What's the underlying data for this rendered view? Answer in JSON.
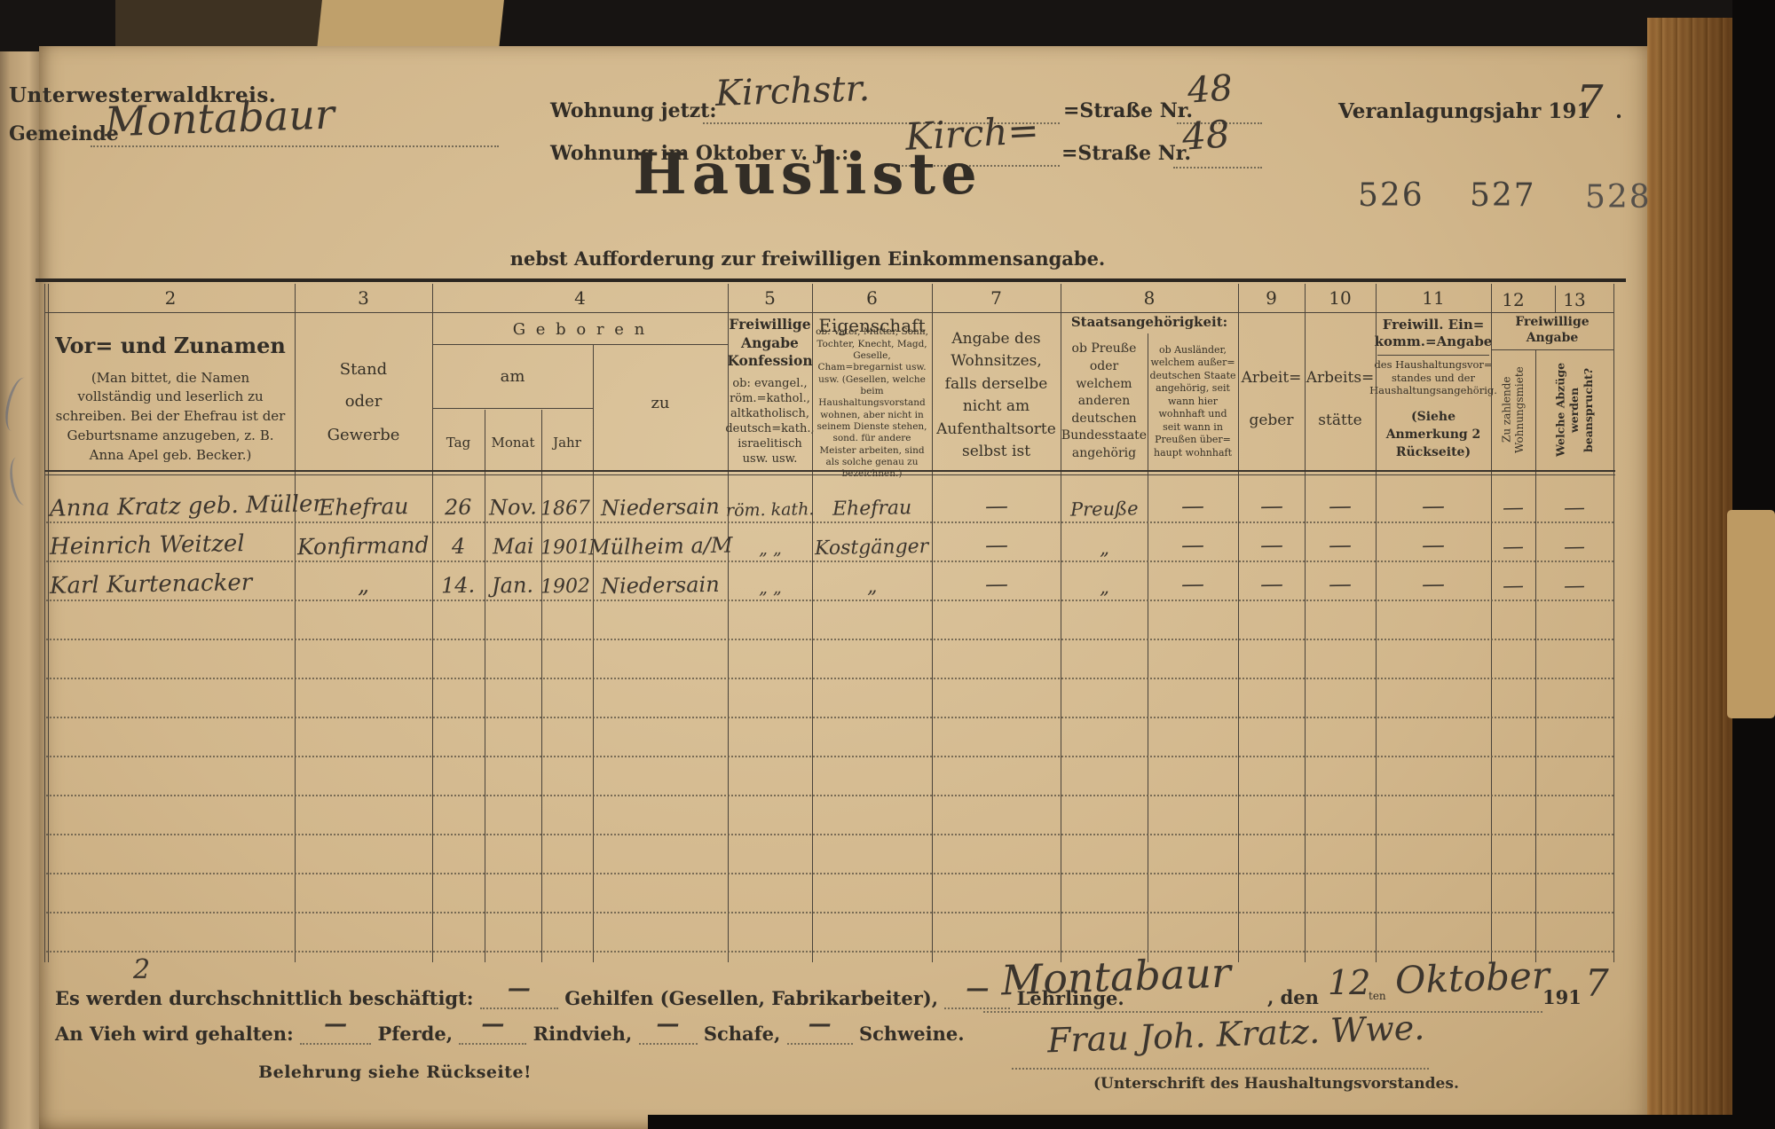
{
  "header": {
    "kreis": "Unterwesterwaldkreis.",
    "gemeinde_label": "Gemeinde",
    "gemeinde_value": "Montabaur",
    "wohnung_jetzt_label": "Wohnung jetzt:",
    "wohnung_jetzt_value": "Kirchstr.",
    "strasse_label": "=Straße Nr.",
    "strasse_nr_jetzt": "48",
    "veranlagung_label": "Veranlagungsjahr 191",
    "veranlagung_jahr": "7",
    "veranlagung_punkt": ".",
    "wohnung_okt_label": "Wohnung im Oktober v. Js.:",
    "wohnung_okt_value": "Kirch=",
    "strasse_nr_okt": "48",
    "title": "Hausliste",
    "subtitle": "nebst Aufforderung zur freiwilligen Einkommensangabe.",
    "page_numbers": [
      "526",
      "527",
      "528"
    ]
  },
  "table": {
    "numbers": [
      "2",
      "3",
      "4",
      "5",
      "6",
      "7",
      "8",
      "9",
      "10",
      "11",
      "12",
      "13"
    ],
    "col2_title": "Vor= und Zunamen",
    "col2_note": "(Man bittet, die Namen vollständig und leserlich zu schreiben. Bei der Ehefrau ist der Geburtsname anzugeben, z. B. Anna Apel geb. Becker.)",
    "col3_l1": "Stand",
    "col3_l2": "oder",
    "col3_l3": "Gewerbe",
    "col4_title": "G e b o r e n",
    "col4_am": "am",
    "col4_zu": "zu",
    "col4_tag": "Tag",
    "col4_monat": "Monat",
    "col4_jahr": "Jahr",
    "col5_title": "Freiwillige Angabe Konfession",
    "col5_note": "ob: evangel., röm.=kathol., altkatholisch, deutsch=kath., israelitisch usw. usw.",
    "col6_title": "Eigenschaft",
    "col6_note": "ob: Vater, Mutter, Sohn, Tochter, Knecht, Magd, Geselle, Cham=bregarnist usw. usw. (Gesellen, welche beim Haushaltungsvorstand wohnen, aber nicht in seinem Dienste stehen, sond. für andere Meister arbeiten, sind als solche genau zu bezeichnen.)",
    "col7_text": "Angabe des Wohnsitzes, falls derselbe nicht am Aufenthaltsorte selbst ist",
    "col8_title": "Staatsangehörigkeit:",
    "col8_left": "ob Preuße oder welchem anderen deutschen Bundesstaate angehörig",
    "col8_right": "ob Ausländer, welchem außer= deutschen Staate angehörig, seit wann hier wohnhaft und seit wann in Preußen über= haupt wohnhaft",
    "col9_l1": "Arbeit=",
    "col9_l2": "geber",
    "col10_l1": "Arbeits=",
    "col10_l2": "stätte",
    "col11_title": "Freiwill. Ein= komm.=Angabe",
    "col11_note": "des Haushaltungsvor= standes und der Haushaltungsangehörig.",
    "col11_note2": "(Siehe Anmerkung 2 Rückseite)",
    "col1213_title": "Freiwillige Angabe",
    "col12_text": "Zu zahlende Wohnungsmiete",
    "col13_text": "Welche Abzüge werden beansprucht?",
    "rows": [
      {
        "name": "Anna Kratz geb. Müller",
        "stand": "Ehefrau",
        "tag": "26",
        "monat": "Nov.",
        "jahr": "1867",
        "zu": "Niedersain",
        "konfession": "röm. kath.",
        "eigenschaft": "Ehefrau",
        "wohnsitz": "—",
        "staat_preusse": "Preuße",
        "staat_ausland": "—",
        "arbeitgeber": "—",
        "arbeitsstaette": "—",
        "einkommen": "—",
        "miete": "—",
        "abzuege": "—"
      },
      {
        "name": "Heinrich Weitzel",
        "stand": "Konfirmand",
        "tag": "4",
        "monat": "Mai",
        "jahr": "1901",
        "zu": "Mülheim a/M",
        "konfession": "„ „",
        "eigenschaft": "Kostgänger",
        "wohnsitz": "—",
        "staat_preusse": "„",
        "staat_ausland": "—",
        "arbeitgeber": "—",
        "arbeitsstaette": "—",
        "einkommen": "—",
        "miete": "—",
        "abzuege": "—"
      },
      {
        "name": "Karl Kurtenacker",
        "stand": "„",
        "tag": "14.",
        "monat": "Jan.",
        "jahr": "1902",
        "zu": "Niedersain",
        "konfession": "„ „",
        "eigenschaft": "„",
        "wohnsitz": "—",
        "staat_preusse": "„",
        "staat_ausland": "—",
        "arbeitgeber": "—",
        "arbeitsstaette": "—",
        "einkommen": "—",
        "miete": "—",
        "abzuege": "—"
      }
    ]
  },
  "footer": {
    "stray_mark": "2",
    "line1_prefix": "Es werden durchschnittlich beschäftigt:",
    "line1_mid": "Gehilfen (Gesellen, Fabrikarbeiter),",
    "line1_end": "Lehrlinge.",
    "line2_prefix": "An Vieh wird gehalten:",
    "line2_items": [
      "Pferde,",
      "Rindvieh,",
      "Schafe,",
      "Schweine."
    ],
    "blank_dash": "—",
    "belehrung": "Belehrung siehe Rückseite!",
    "ort": "Montabaur",
    "den_label": ", den",
    "tag": "12",
    "ten_label": "ten",
    "monat": "Oktober",
    "jahr_printed": "191",
    "jahr_hand": "7",
    "signature": "Frau Joh. Kratz. Wwe.",
    "unterschrift_label": "(Unterschrift des Haushaltungsvorstandes."
  },
  "colors": {
    "page": "#d2b78c",
    "ink": "#322d26",
    "handwriting": "#3c352d",
    "line": "#4a433a"
  }
}
